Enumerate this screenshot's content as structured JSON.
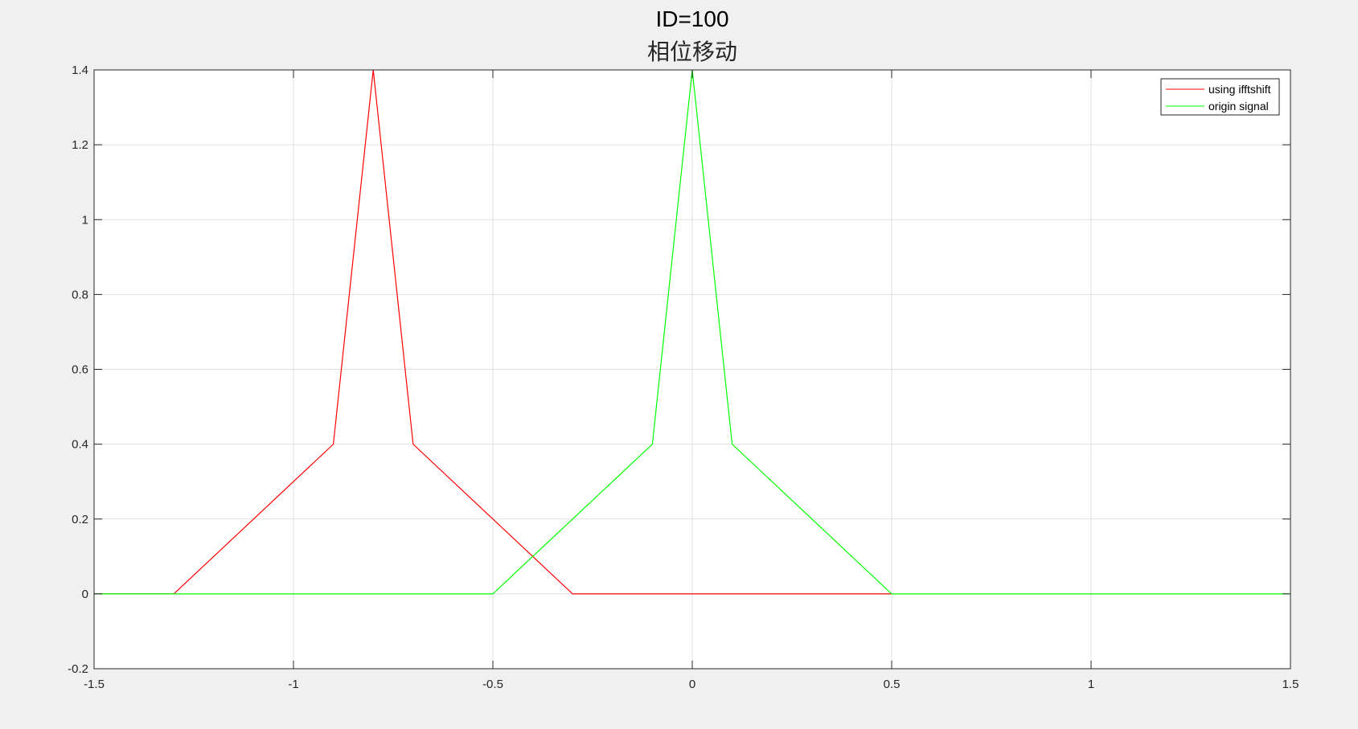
{
  "chart_data": {
    "type": "line",
    "title": "ID=100",
    "subtitle": "相位移动",
    "xlabel": "",
    "ylabel": "",
    "xlim": [
      -1.5,
      1.5
    ],
    "ylim": [
      -0.2,
      1.4
    ],
    "xticks": [
      -1.5,
      -1,
      -0.5,
      0,
      0.5,
      1,
      1.5
    ],
    "xtick_labels": [
      "-1.5",
      "-1",
      "-0.5",
      "0",
      "0.5",
      "1",
      "1.5"
    ],
    "yticks": [
      -0.2,
      0,
      0.2,
      0.4,
      0.6,
      0.8,
      1,
      1.2,
      1.4
    ],
    "ytick_labels": [
      "-0.2",
      "0",
      "0.2",
      "0.4",
      "0.6",
      "0.8",
      "1",
      "1.2",
      "1.4"
    ],
    "grid": true,
    "legend_position": "top-right",
    "series": [
      {
        "name": "using ifftshift",
        "color": "#ff0000",
        "x": [
          -1.5,
          -1.3,
          -0.9,
          -0.8,
          -0.7,
          -0.3,
          0.5
        ],
        "y": [
          0,
          0,
          0.4,
          1.4,
          0.4,
          0,
          0
        ]
      },
      {
        "name": "origin signal",
        "color": "#00ff00",
        "x": [
          -1.5,
          -0.5,
          -0.1,
          0,
          0.1,
          0.5,
          1.5
        ],
        "y": [
          0,
          0,
          0.4,
          1.4,
          0.4,
          0,
          0
        ]
      }
    ]
  }
}
